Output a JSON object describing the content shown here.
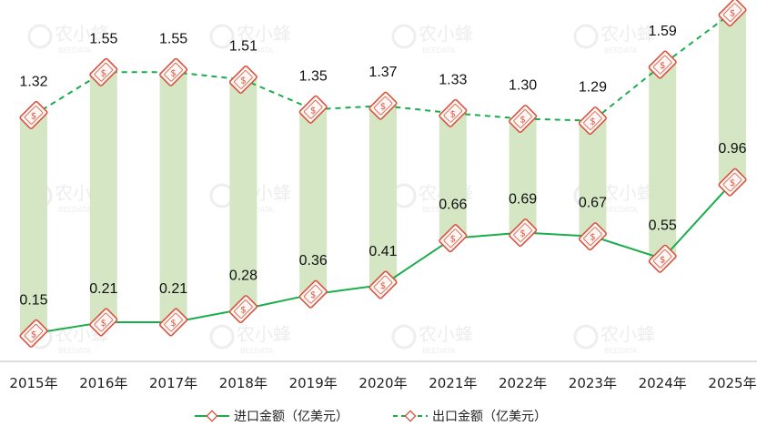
{
  "chart_data": {
    "type": "line",
    "categories": [
      "2015年",
      "2016年",
      "2017年",
      "2018年",
      "2019年",
      "2020年",
      "2021年",
      "2022年",
      "2023年",
      "2024年",
      "2025年"
    ],
    "series": [
      {
        "name": "进口金额（亿美元）",
        "values": [
          0.15,
          0.21,
          0.21,
          0.28,
          0.36,
          0.41,
          0.66,
          0.69,
          0.67,
          0.55,
          0.96
        ],
        "color": "#1aad4b",
        "style": "solid"
      },
      {
        "name": "出口金额（亿美元）",
        "values": [
          1.32,
          1.55,
          1.55,
          1.51,
          1.35,
          1.37,
          1.33,
          1.3,
          1.29,
          1.59,
          1.87
        ],
        "color": "#1aad4b",
        "style": "dashed"
      }
    ],
    "range_bar_color": "#d5e6c4",
    "marker_color": "#d9533f",
    "ylim": [
      0,
      2.0
    ],
    "grid": false,
    "legend_position": "bottom",
    "xlabel": "",
    "ylabel": ""
  },
  "watermark": {
    "text": "农小蜂",
    "subtext": "BEEDATA"
  }
}
